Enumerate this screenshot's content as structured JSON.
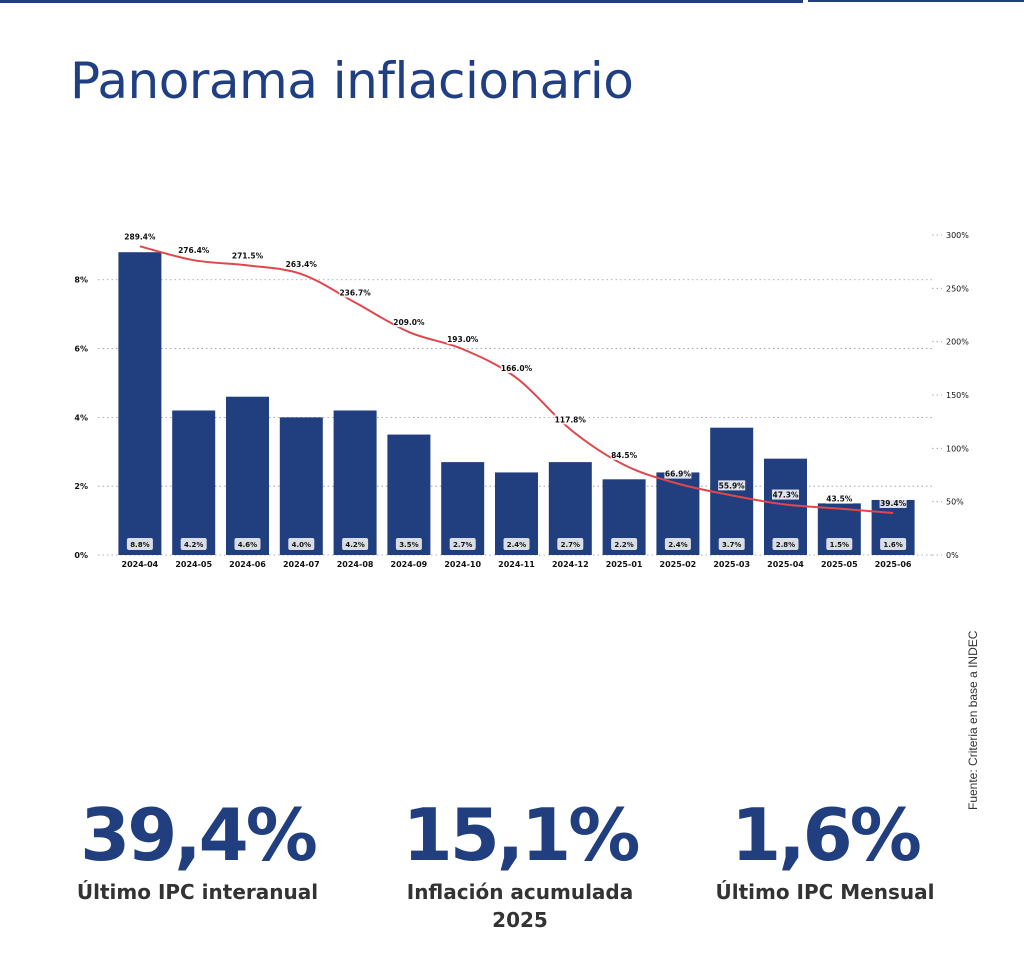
{
  "title": "Panorama inflacionario",
  "source": "Fuente: Criteria en base a INDEC",
  "colors": {
    "bars": "#213f7f",
    "line": "#e0474c",
    "pill": "#d9dde6",
    "title": "#1f3f82"
  },
  "kpis": [
    {
      "value": "39,4%",
      "label": "Último IPC interanual"
    },
    {
      "value": "15,1%",
      "label": "Inflación acumulada 2025"
    },
    {
      "value": "1,6%",
      "label": "Último IPC Mensual"
    }
  ],
  "chart_data": {
    "type": "bar",
    "categories": [
      "2024-04",
      "2024-05",
      "2024-06",
      "2024-07",
      "2024-08",
      "2024-09",
      "2024-10",
      "2024-11",
      "2024-12",
      "2025-01",
      "2025-02",
      "2025-03",
      "2025-04",
      "2025-05",
      "2025-06"
    ],
    "series": [
      {
        "type": "bar",
        "axis": "left",
        "values": [
          8.8,
          4.2,
          4.6,
          4.0,
          4.2,
          3.5,
          2.7,
          2.4,
          2.7,
          2.2,
          2.4,
          3.7,
          2.8,
          1.5,
          1.6
        ],
        "labels": [
          "8.8%",
          "4.2%",
          "4.6%",
          "4.0%",
          "4.2%",
          "3.5%",
          "2.7%",
          "2.4%",
          "2.7%",
          "2.2%",
          "2.4%",
          "3.7%",
          "2.8%",
          "1.5%",
          "1.6%"
        ]
      },
      {
        "type": "line",
        "axis": "right",
        "values": [
          289.4,
          276.4,
          271.5,
          263.4,
          236.7,
          209.0,
          193.0,
          166.0,
          117.8,
          84.5,
          66.9,
          55.9,
          47.3,
          43.5,
          39.4
        ],
        "labels": [
          "289.4%",
          "276.4%",
          "271.5%",
          "263.4%",
          "236.7%",
          "209.0%",
          "193.0%",
          "166.0%",
          "117.8%",
          "84.5%",
          "66.9%",
          "55.9%",
          "47.3%",
          "43.5%",
          "39.4%"
        ]
      }
    ],
    "left_axis": {
      "ylim": [
        0,
        9.3
      ],
      "ticks": [
        0,
        2,
        4,
        6,
        8
      ],
      "tick_labels": [
        "0%",
        "2%",
        "4%",
        "6%",
        "8%"
      ]
    },
    "right_axis": {
      "ylim": [
        0,
        300
      ],
      "ticks": [
        0,
        50,
        100,
        150,
        200,
        250,
        300
      ],
      "tick_labels": [
        "0%",
        "50%",
        "100%",
        "150%",
        "200%",
        "250%",
        "300%"
      ]
    },
    "grid": true
  }
}
